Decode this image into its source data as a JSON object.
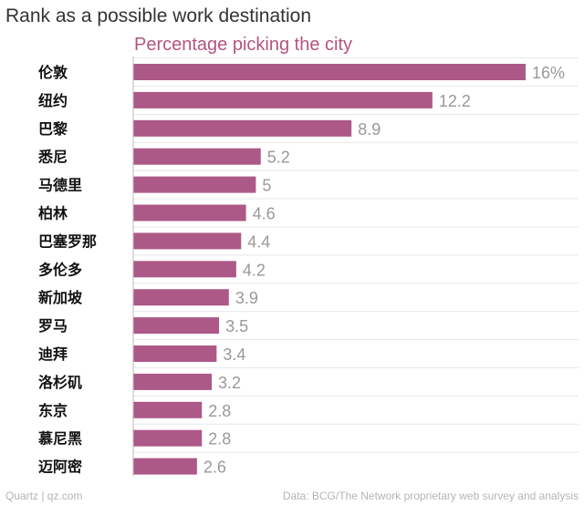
{
  "title": "Rank as a possible work destination",
  "footer": {
    "source_left": "Quartz | qz.com",
    "source_right": "Data: BCG/The Network proprietary web survey and analysis"
  },
  "colors": {
    "bar": "#ad5987",
    "subtitle": "#b5547f",
    "grid": "#e8e8e8",
    "axis": "#bbbbbb"
  },
  "chart_data": {
    "type": "bar",
    "orientation": "horizontal",
    "subtitle": "Percentage picking the city",
    "categories": [
      "伦敦",
      "纽约",
      "巴黎",
      "悉尼",
      "马德里",
      "柏林",
      "巴塞罗那",
      "多伦多",
      "新加坡",
      "罗马",
      "迪拜",
      "洛杉矶",
      "东京",
      "慕尼黑",
      "迈阿密"
    ],
    "values": [
      16,
      12.2,
      8.9,
      5.2,
      5,
      4.6,
      4.4,
      4.2,
      3.9,
      3.5,
      3.4,
      3.2,
      2.8,
      2.8,
      2.6
    ],
    "value_labels": [
      "16%",
      "12.2",
      "8.9",
      "5.2",
      "5",
      "4.6",
      "4.4",
      "4.2",
      "3.9",
      "3.5",
      "3.4",
      "3.2",
      "2.8",
      "2.8",
      "2.6"
    ],
    "xlim": [
      0,
      16
    ],
    "grid": true,
    "legend": "none"
  }
}
